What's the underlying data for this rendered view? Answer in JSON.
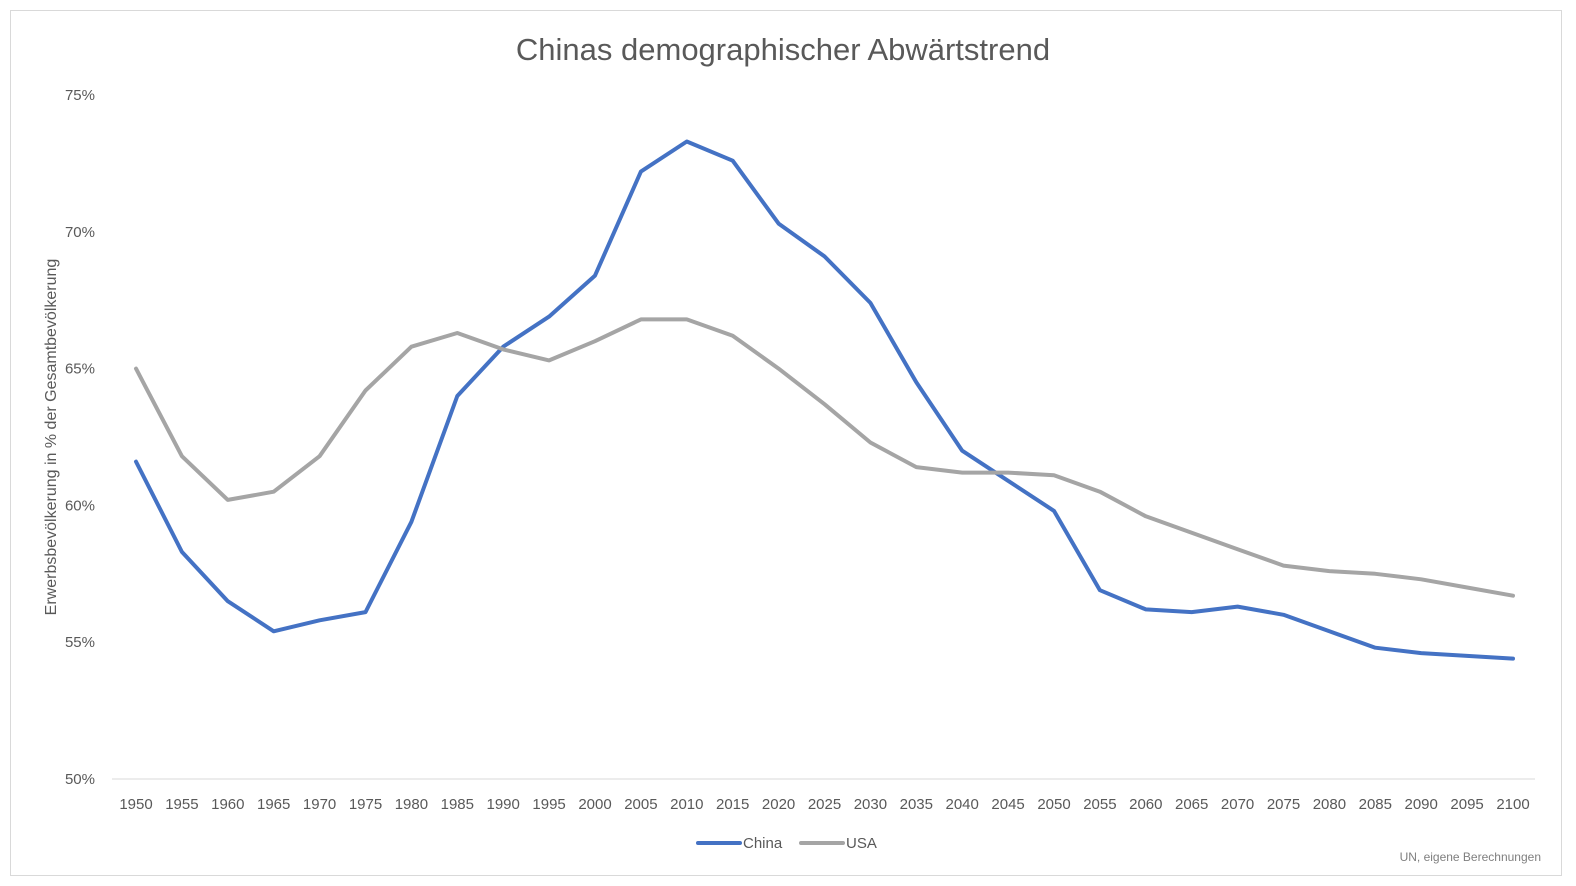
{
  "chart_data": {
    "type": "line",
    "title": "Chinas demographischer Abwärtstrend",
    "ylabel": "Erwerbsbevölkerung in % der Gesamtbevölkerung",
    "xlabel": "",
    "source": "UN, eigene Berechnungen",
    "ylim": [
      50,
      75
    ],
    "y_ticks": [
      50,
      55,
      60,
      65,
      70,
      75
    ],
    "y_tick_labels": [
      "50%",
      "55%",
      "60%",
      "65%",
      "70%",
      "75%"
    ],
    "grid": false,
    "legend": "bottom",
    "categories": [
      "1950",
      "1955",
      "1960",
      "1965",
      "1970",
      "1975",
      "1980",
      "1985",
      "1990",
      "1995",
      "2000",
      "2005",
      "2010",
      "2015",
      "2020",
      "2025",
      "2030",
      "2035",
      "2040",
      "2045",
      "2050",
      "2055",
      "2060",
      "2065",
      "2070",
      "2075",
      "2080",
      "2085",
      "2090",
      "2095",
      "2100"
    ],
    "series": [
      {
        "name": "China",
        "color": "#4472c4",
        "values": [
          61.6,
          58.3,
          56.5,
          55.4,
          55.8,
          56.1,
          59.4,
          64.0,
          65.8,
          66.9,
          68.4,
          72.2,
          73.3,
          72.6,
          70.3,
          69.1,
          67.4,
          64.5,
          62.0,
          60.9,
          59.8,
          56.9,
          56.2,
          56.1,
          56.3,
          56.0,
          55.4,
          54.8,
          54.6,
          54.5,
          54.4
        ]
      },
      {
        "name": "USA",
        "color": "#a5a5a5",
        "values": [
          65.0,
          61.8,
          60.2,
          60.5,
          61.8,
          64.2,
          65.8,
          66.3,
          65.7,
          65.3,
          66.0,
          66.8,
          66.8,
          66.2,
          65.0,
          63.7,
          62.3,
          61.4,
          61.2,
          61.2,
          61.1,
          60.5,
          59.6,
          59.0,
          58.4,
          57.8,
          57.6,
          57.5,
          57.3,
          57.0,
          56.7
        ]
      }
    ]
  }
}
